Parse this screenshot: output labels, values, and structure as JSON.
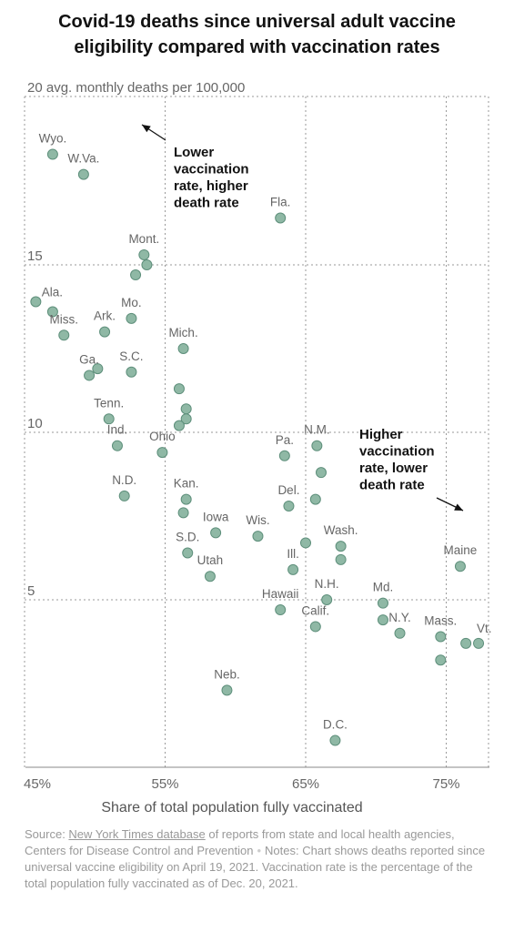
{
  "title_lines": [
    "Covid-19 deaths since universal adult vaccine",
    "eligibility compared with vaccination rates"
  ],
  "colors": {
    "point_fill": "#8fb8a5",
    "point_stroke": "#5e8f7b",
    "grid": "#9a9a9a",
    "text": "#121212",
    "muted": "#666666"
  },
  "chart_data": {
    "type": "scatter",
    "y_axis_title": "20 avg. monthly deaths per 100,000",
    "x_axis_title": "Share of total population fully vaccinated",
    "xlim": [
      45,
      78
    ],
    "ylim": [
      0,
      20
    ],
    "x_ticks": [
      {
        "value": 45,
        "label": "45%"
      },
      {
        "value": 55,
        "label": "55%"
      },
      {
        "value": 65,
        "label": "65%"
      },
      {
        "value": 75,
        "label": "75%"
      }
    ],
    "y_ticks": [
      {
        "value": 5,
        "label": "5"
      },
      {
        "value": 10,
        "label": "10"
      },
      {
        "value": 15,
        "label": "15"
      }
    ],
    "grid": true,
    "points": [
      {
        "x": 47.0,
        "y": 18.3,
        "label": "Wyo."
      },
      {
        "x": 49.2,
        "y": 17.7,
        "label": "W.Va."
      },
      {
        "x": 63.2,
        "y": 16.4,
        "label": "Fla."
      },
      {
        "x": 53.5,
        "y": 15.3,
        "label": "Mont."
      },
      {
        "x": 53.7,
        "y": 15.0
      },
      {
        "x": 52.9,
        "y": 14.7
      },
      {
        "x": 45.8,
        "y": 13.9,
        "label": "Ala."
      },
      {
        "x": 47.0,
        "y": 13.6
      },
      {
        "x": 47.8,
        "y": 12.9,
        "label": "Miss."
      },
      {
        "x": 50.7,
        "y": 13.0,
        "label": "Ark."
      },
      {
        "x": 52.6,
        "y": 13.4,
        "label": "Mo."
      },
      {
        "x": 56.3,
        "y": 12.5,
        "label": "Mich."
      },
      {
        "x": 50.2,
        "y": 11.9
      },
      {
        "x": 49.6,
        "y": 11.7,
        "label": "Ga."
      },
      {
        "x": 52.6,
        "y": 11.8,
        "label": "S.C."
      },
      {
        "x": 56.0,
        "y": 11.3
      },
      {
        "x": 56.5,
        "y": 10.7
      },
      {
        "x": 56.5,
        "y": 10.4
      },
      {
        "x": 56.0,
        "y": 10.2
      },
      {
        "x": 51.0,
        "y": 10.4,
        "label": "Tenn."
      },
      {
        "x": 51.6,
        "y": 9.6,
        "label": "Ind."
      },
      {
        "x": 54.8,
        "y": 9.4,
        "label": "Ohio"
      },
      {
        "x": 63.5,
        "y": 9.3,
        "label": "Pa."
      },
      {
        "x": 65.8,
        "y": 9.6,
        "label": "N.M."
      },
      {
        "x": 66.1,
        "y": 8.8
      },
      {
        "x": 65.7,
        "y": 8.0
      },
      {
        "x": 52.1,
        "y": 8.1,
        "label": "N.D."
      },
      {
        "x": 56.5,
        "y": 8.0,
        "label": "Kan."
      },
      {
        "x": 56.3,
        "y": 7.6
      },
      {
        "x": 63.8,
        "y": 7.8,
        "label": "Del."
      },
      {
        "x": 58.6,
        "y": 7.0,
        "label": "Iowa"
      },
      {
        "x": 61.6,
        "y": 6.9,
        "label": "Wis."
      },
      {
        "x": 65.0,
        "y": 6.7
      },
      {
        "x": 67.5,
        "y": 6.6,
        "label": "Wash."
      },
      {
        "x": 67.5,
        "y": 6.2
      },
      {
        "x": 56.6,
        "y": 6.4,
        "label": "S.D."
      },
      {
        "x": 64.1,
        "y": 5.9,
        "label": "Ill."
      },
      {
        "x": 76.0,
        "y": 6.0,
        "label": "Maine"
      },
      {
        "x": 58.2,
        "y": 5.7,
        "label": "Utah"
      },
      {
        "x": 66.5,
        "y": 5.0,
        "label": "N.H."
      },
      {
        "x": 70.5,
        "y": 4.9,
        "label": "Md."
      },
      {
        "x": 63.2,
        "y": 4.7,
        "label": "Hawaii"
      },
      {
        "x": 70.5,
        "y": 4.4
      },
      {
        "x": 65.7,
        "y": 4.2,
        "label": "Calif."
      },
      {
        "x": 71.7,
        "y": 4.0,
        "label": "N.Y."
      },
      {
        "x": 74.6,
        "y": 3.9,
        "label": "Mass."
      },
      {
        "x": 76.4,
        "y": 3.7
      },
      {
        "x": 77.3,
        "y": 3.7,
        "label": "Vt."
      },
      {
        "x": 74.6,
        "y": 3.2
      },
      {
        "x": 59.4,
        "y": 2.3,
        "label": "Neb."
      },
      {
        "x": 67.1,
        "y": 0.8,
        "label": "D.C."
      }
    ],
    "annotations": [
      {
        "lines": [
          "Lower",
          "vaccination",
          "rate, higher",
          "death rate"
        ]
      },
      {
        "lines": [
          "Higher",
          "vaccination",
          "rate, lower",
          "death rate"
        ]
      }
    ]
  },
  "footnote": {
    "source_prefix": "Source: ",
    "source_link": "New York Times database",
    "source_rest": " of reports from state and local health agencies, Centers for Disease Control and Prevention",
    "separator": "•",
    "notes": "Notes: Chart shows deaths reported since universal vaccine eligibility on April 19, 2021. Vaccination rate is the percentage of the total population fully vaccinated as of Dec. 20, 2021."
  }
}
